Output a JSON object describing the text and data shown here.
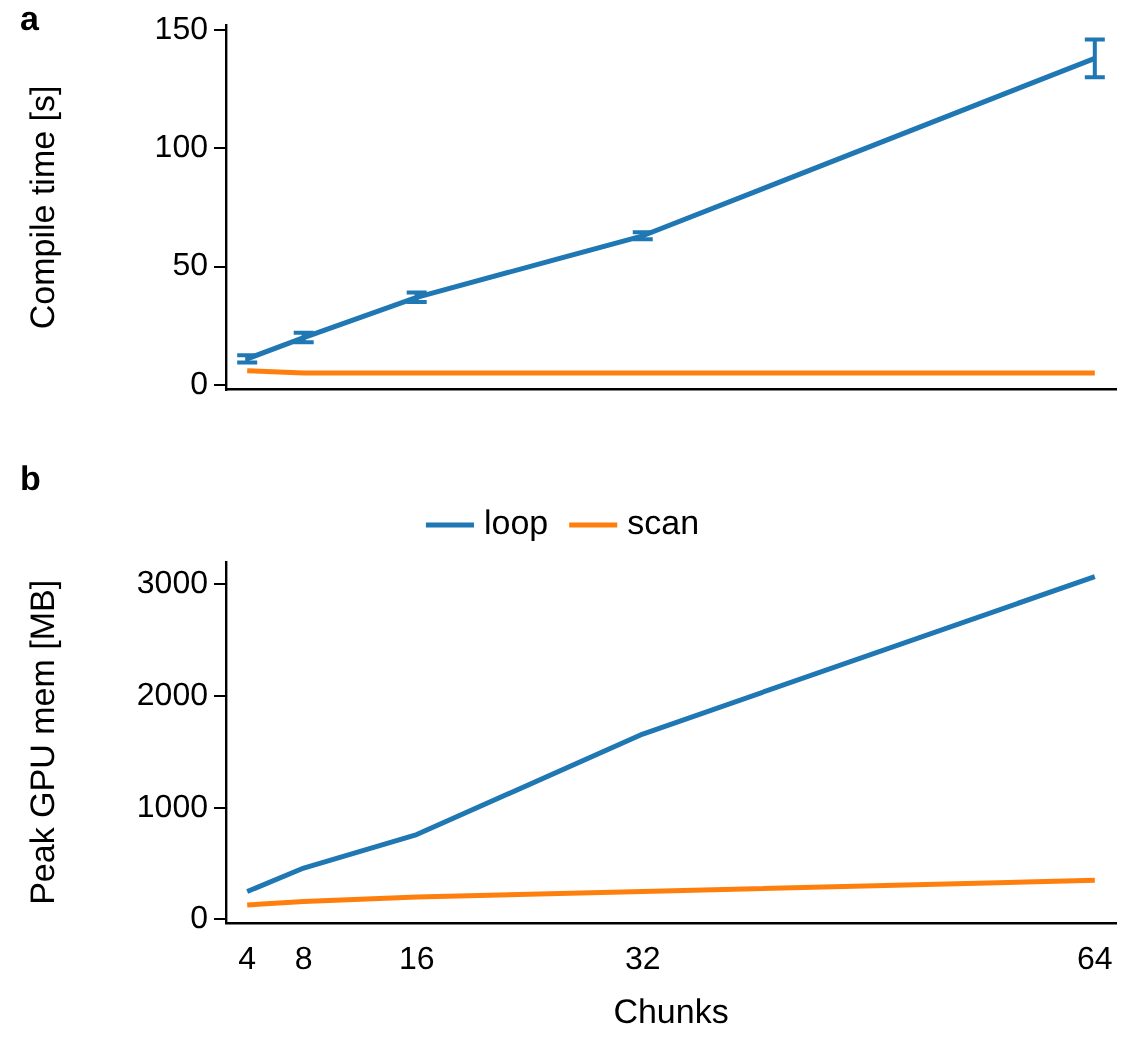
{
  "chart_data": [
    {
      "type": "line",
      "title": "a",
      "ylabel": "Compile time [s]",
      "x": [
        4,
        8,
        16,
        32,
        64
      ],
      "xlim": [
        2.5,
        65.5
      ],
      "xticks": [
        4,
        8,
        16,
        32,
        64
      ],
      "ylim": [
        -2,
        152
      ],
      "yticks": [
        0,
        50,
        100,
        150
      ],
      "tick_labels": "y",
      "marker": "none",
      "legend": false,
      "series": [
        {
          "color": "#1f77b4",
          "values": [
            11,
            20,
            37,
            63,
            138
          ],
          "errors": [
            1.5,
            2,
            2,
            1.5,
            8
          ]
        },
        {
          "color": "#ff7f0e",
          "values": [
            6,
            5,
            5,
            5,
            5
          ]
        }
      ]
    },
    {
      "type": "line",
      "title": "b",
      "xlabel": "Chunks",
      "ylabel": "Peak GPU mem [MB]",
      "x": [
        4,
        8,
        16,
        32,
        64
      ],
      "xlim": [
        2.5,
        65.5
      ],
      "xticks": [
        4,
        8,
        16,
        32,
        64
      ],
      "ylim": [
        -30,
        3200
      ],
      "yticks": [
        0,
        1000,
        2000,
        3000
      ],
      "marker": "none",
      "legend": "top",
      "series": [
        {
          "name": "loop",
          "color": "#1f77b4",
          "values": [
            250,
            460,
            760,
            1660,
            3070
          ]
        },
        {
          "name": "scan",
          "color": "#ff7f0e",
          "values": [
            130,
            160,
            200,
            250,
            350
          ]
        }
      ]
    }
  ]
}
